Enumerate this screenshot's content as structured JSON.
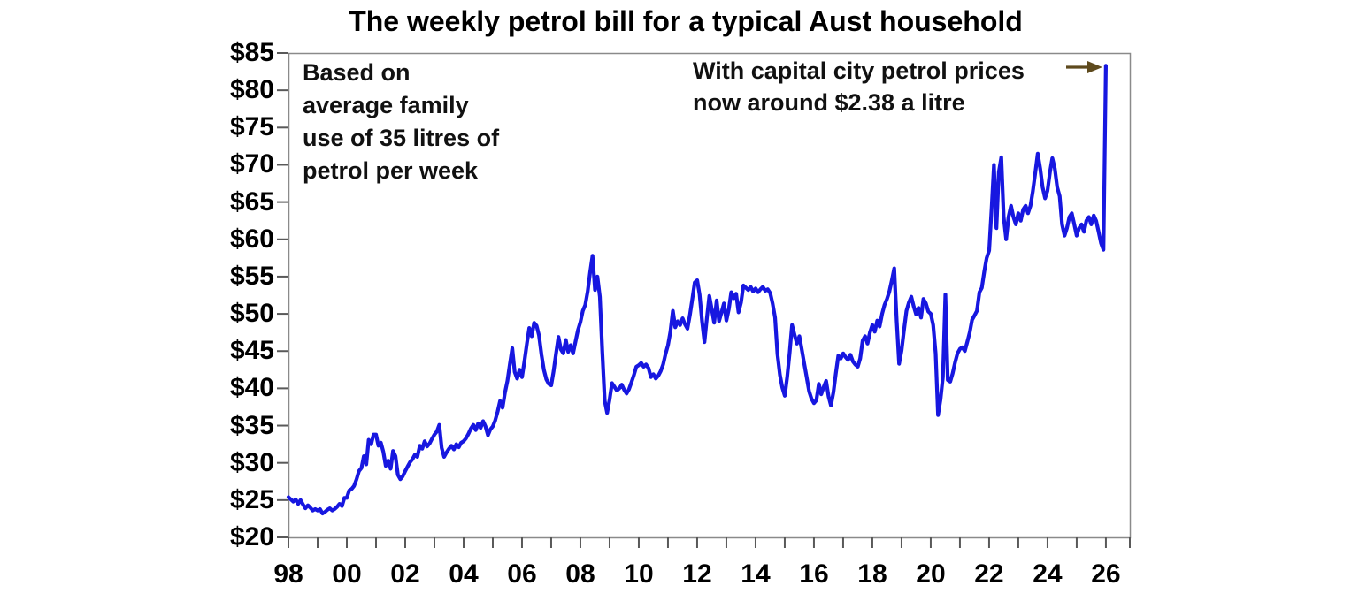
{
  "title": "The weekly petrol bill for a typical Aust household",
  "annotations": {
    "left": "Based on\naverage family\nuse of 35 litres of\npetrol per week",
    "right": "With capital city petrol prices\nnow around $2.38 a litre"
  },
  "colors": {
    "line": "#1717e0",
    "arrow": "#5e4a1d",
    "frame": "#8a8a8a",
    "tick": "#595959",
    "text": "#000000",
    "background": "#ffffff"
  },
  "chart_data": {
    "type": "line",
    "title": "The weekly petrol bill for a typical Aust household",
    "xlabel": "",
    "ylabel": "",
    "grid": false,
    "legend": "none",
    "x_axis": {
      "unit": "year",
      "range": [
        1998,
        2026.82
      ],
      "major_tick_years": [
        1998,
        2000,
        2002,
        2004,
        2006,
        2008,
        2010,
        2012,
        2014,
        2016,
        2018,
        2020,
        2022,
        2024,
        2026
      ],
      "major_tick_labels": [
        "98",
        "00",
        "02",
        "04",
        "06",
        "08",
        "10",
        "12",
        "14",
        "16",
        "18",
        "20",
        "22",
        "24",
        "26"
      ],
      "minor_tick_interval": 1
    },
    "y_axis": {
      "unit": "AUD per week",
      "range": [
        20,
        85
      ],
      "tick_interval": 5,
      "tick_values": [
        20,
        25,
        30,
        35,
        40,
        45,
        50,
        55,
        60,
        65,
        70,
        75,
        80,
        85
      ],
      "tick_labels": [
        "$20",
        "$25",
        "$30",
        "$35",
        "$40",
        "$45",
        "$50",
        "$55",
        "$60",
        "$65",
        "$70",
        "$75",
        "$80",
        "$85"
      ]
    },
    "series": [
      {
        "name": "Weekly petrol bill (35 litres)",
        "frequency": "monthly",
        "start_year": 1998,
        "values_by_year": {
          "1998": [
            25.4,
            25.1,
            24.8,
            25.1,
            24.5,
            25.0,
            24.4,
            23.9,
            24.3,
            24.0,
            23.6,
            23.8
          ],
          "1999": [
            23.6,
            23.8,
            23.2,
            23.4,
            23.7,
            23.9,
            23.6,
            23.8,
            24.1,
            24.5,
            24.2,
            25.3
          ],
          "2000": [
            25.3,
            26.3,
            26.5,
            26.9,
            27.8,
            28.9,
            29.3,
            30.9,
            29.8,
            33.1,
            32.5,
            33.8
          ],
          "2001": [
            33.8,
            32.3,
            32.7,
            31.5,
            29.6,
            30.3,
            29.2,
            31.6,
            30.9,
            28.4,
            27.8,
            28.2
          ],
          "2002": [
            28.9,
            29.5,
            30.1,
            30.5,
            31.1,
            30.8,
            32.3,
            31.9,
            32.9,
            32.2,
            32.6,
            33.2
          ],
          "2003": [
            33.8,
            34.2,
            35.1,
            32.0,
            30.8,
            31.4,
            31.9,
            32.3,
            31.8,
            32.5,
            32.1,
            32.7
          ],
          "2004": [
            32.9,
            33.3,
            33.9,
            34.6,
            35.1,
            34.4,
            35.3,
            34.7,
            35.6,
            34.9,
            33.7,
            34.5
          ],
          "2005": [
            34.9,
            35.7,
            36.9,
            38.3,
            37.4,
            39.4,
            41.0,
            43.2,
            45.4,
            42.2,
            41.3,
            42.5
          ],
          "2006": [
            41.5,
            43.6,
            46.0,
            48.1,
            47.0,
            48.8,
            48.4,
            47.1,
            44.5,
            42.5,
            41.2,
            40.6
          ],
          "2007": [
            40.4,
            42.3,
            44.7,
            46.9,
            45.2,
            44.7,
            46.5,
            44.9,
            45.8,
            44.7,
            46.3,
            47.8
          ],
          "2008": [
            48.9,
            50.4,
            51.2,
            53.0,
            55.6,
            57.8,
            53.2,
            55.0,
            52.3,
            45.0,
            38.3,
            36.7
          ],
          "2009": [
            38.5,
            40.7,
            40.2,
            39.7,
            40.0,
            40.5,
            39.8,
            39.3,
            39.9,
            40.8,
            41.8,
            42.9
          ],
          "2010": [
            43.1,
            43.4,
            42.9,
            43.2,
            42.7,
            41.5,
            41.9,
            41.3,
            41.7,
            42.3,
            43.2,
            44.6
          ],
          "2011": [
            45.8,
            47.6,
            50.4,
            48.2,
            49.0,
            48.5,
            49.4,
            48.6,
            48.0,
            49.8,
            52.0,
            54.2
          ],
          "2012": [
            54.5,
            52.6,
            49.0,
            46.2,
            49.5,
            52.4,
            50.6,
            48.8,
            51.8,
            49.0,
            50.2,
            51.4
          ],
          "2013": [
            49.1,
            50.6,
            52.9,
            52.1,
            52.7,
            50.2,
            51.5,
            53.8,
            53.5,
            53.2,
            53.6,
            53.0
          ],
          "2014": [
            53.4,
            52.9,
            53.3,
            53.6,
            53.1,
            53.3,
            52.8,
            51.4,
            49.5,
            44.6,
            41.8,
            40.1
          ],
          "2015": [
            39.0,
            41.5,
            44.8,
            48.5,
            47.2,
            46.0,
            47.0,
            45.2,
            43.3,
            41.5,
            39.6,
            38.6
          ],
          "2016": [
            38.0,
            38.4,
            40.6,
            39.2,
            40.2,
            41.0,
            38.9,
            37.7,
            39.5,
            42.0,
            44.4,
            44.0
          ],
          "2017": [
            44.7,
            44.2,
            43.8,
            44.5,
            43.6,
            43.2,
            42.9,
            44.0,
            46.4,
            47.0,
            46.0,
            47.5
          ],
          "2018": [
            48.5,
            47.6,
            49.1,
            48.3,
            50.0,
            51.2,
            52.0,
            53.0,
            54.5,
            56.1,
            49.0,
            43.3
          ],
          "2019": [
            45.1,
            47.8,
            50.4,
            51.5,
            52.3,
            51.0,
            49.9,
            50.8,
            49.5,
            52.0,
            51.4,
            50.3
          ],
          "2020": [
            50.0,
            48.5,
            44.7,
            36.4,
            38.5,
            41.5,
            52.6,
            41.1,
            40.9,
            42.0,
            43.5,
            44.7
          ],
          "2021": [
            45.3,
            45.5,
            45.0,
            46.2,
            47.5,
            49.2,
            49.8,
            50.4,
            52.9,
            53.5,
            55.7,
            57.5
          ],
          "2022": [
            58.5,
            64.0,
            70.0,
            61.5,
            69.0,
            71.0,
            63.0,
            60.0,
            63.0,
            64.5,
            63.0,
            62.0
          ],
          "2023": [
            63.5,
            62.5,
            64.0,
            64.5,
            63.5,
            64.5,
            66.5,
            69.0,
            71.5,
            69.5,
            67.0,
            65.5
          ],
          "2024": [
            66.5,
            69.0,
            70.9,
            69.5,
            67.0,
            65.8,
            62.0,
            60.5,
            61.5,
            63.0,
            63.5,
            62.0
          ],
          "2025": [
            60.5,
            61.5,
            62.0,
            61.0,
            62.5,
            63.0,
            62.0,
            63.2,
            62.5,
            61.0,
            59.5,
            58.6
          ],
          "2026": [
            83.3
          ]
        }
      }
    ]
  }
}
